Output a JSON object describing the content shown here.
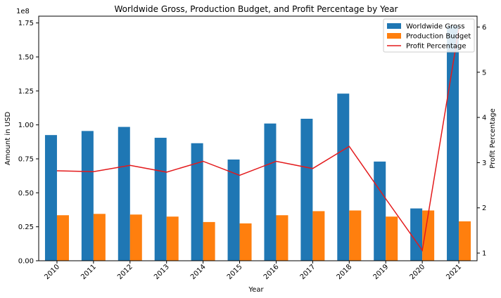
{
  "chart_data": {
    "type": "bar",
    "title": "Worldwide Gross, Production Budget, and Profit Percentage by Year",
    "xlabel": "Year",
    "ylabel": "Amount in USD",
    "y2label": "Profit Percentage",
    "y_offset_label": "1e8",
    "categories": [
      "2010",
      "2011",
      "2012",
      "2013",
      "2014",
      "2015",
      "2016",
      "2017",
      "2018",
      "2019",
      "2020",
      "2021"
    ],
    "series": [
      {
        "name": "Worldwide Gross",
        "kind": "bar",
        "axis": "left",
        "color": "#1f77b4",
        "values": [
          92500000,
          95500000,
          98500000,
          90500000,
          86500000,
          74500000,
          101000000,
          104500000,
          123000000,
          73000000,
          38500000,
          173000000
        ]
      },
      {
        "name": "Production Budget",
        "kind": "bar",
        "axis": "left",
        "color": "#ff7f0e",
        "values": [
          33500000,
          34500000,
          34000000,
          32500000,
          28500000,
          27500000,
          33500000,
          36500000,
          37000000,
          32500000,
          37000000,
          29000000
        ]
      },
      {
        "name": "Profit Percentage",
        "kind": "line",
        "axis": "right",
        "color": "#e31a1c",
        "values": [
          2.82,
          2.8,
          2.94,
          2.79,
          3.03,
          2.72,
          3.03,
          2.87,
          3.36,
          2.2,
          1.06,
          5.96
        ]
      }
    ],
    "ylim": [
      0,
      180000000
    ],
    "y_ticks": [
      0,
      25000000,
      50000000,
      75000000,
      100000000,
      125000000,
      150000000,
      175000000
    ],
    "y_tick_labels": [
      "0.00",
      "0.25",
      "0.50",
      "0.75",
      "1.00",
      "1.25",
      "1.50",
      "1.75"
    ],
    "y2lim": [
      0.83,
      6.24
    ],
    "y2_ticks": [
      1,
      2,
      3,
      4,
      5,
      6
    ],
    "y2_tick_labels": [
      "1",
      "2",
      "3",
      "4",
      "5",
      "6"
    ],
    "grid": false,
    "legend_position": "top-right"
  }
}
